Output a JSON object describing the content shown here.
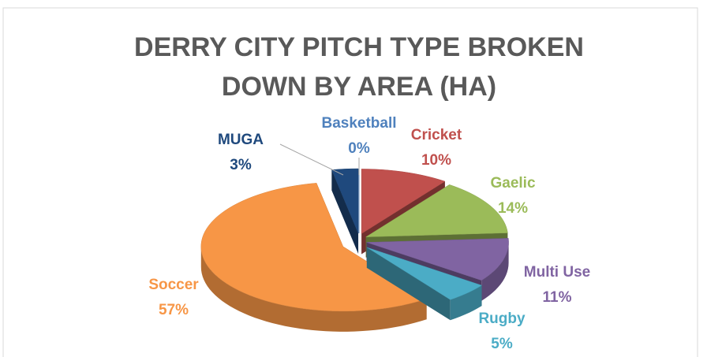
{
  "chart_data": {
    "type": "pie3d",
    "title": [
      "DERRY CITY PITCH TYPE BROKEN",
      "DOWN BY AREA (HA)"
    ],
    "categories": [
      "Basketball",
      "Cricket",
      "Gaelic",
      "Multi Use",
      "Rugby",
      "Soccer",
      "MUGA"
    ],
    "values": [
      0,
      10,
      14,
      11,
      5,
      57,
      3
    ],
    "value_labels": [
      "0%",
      "10%",
      "14%",
      "11%",
      "5%",
      "57%",
      "3%"
    ],
    "colors": [
      "#4f81bd",
      "#c0504d",
      "#9bbb59",
      "#8064a2",
      "#4bacc6",
      "#f79646",
      "#1f497d"
    ]
  }
}
